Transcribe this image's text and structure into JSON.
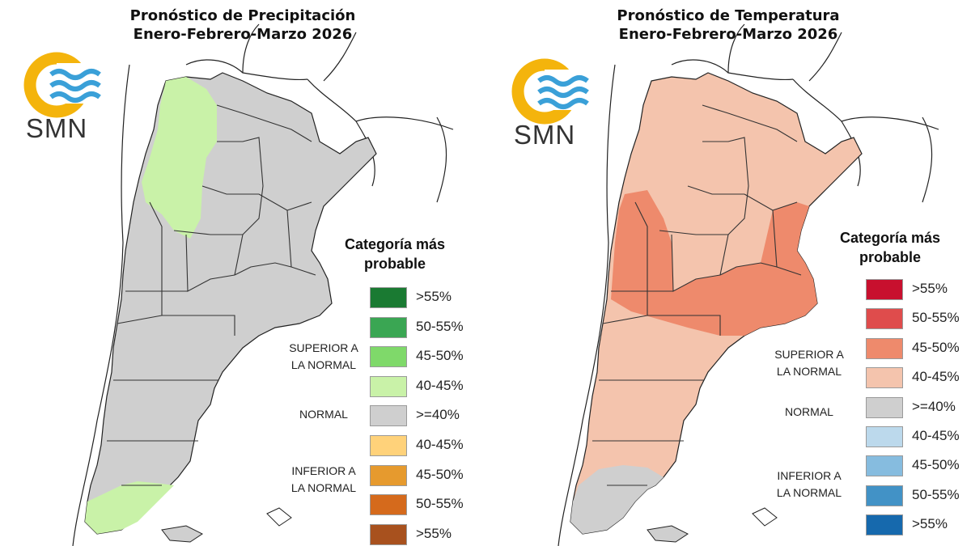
{
  "panels": [
    {
      "id": "precip",
      "title_line1": "Pronóstico de Precipitación",
      "title_line2": "Enero-Febrero-Marzo 2026",
      "logo_text": "SMN",
      "legend_title_line1": "Categoría más",
      "legend_title_line2": "probable",
      "categories": {
        "superior_line1": "SUPERIOR A",
        "superior_line2": "LA NORMAL",
        "normal": "NORMAL",
        "inferior_line1": "INFERIOR A",
        "inferior_line2": "LA NORMAL"
      },
      "legend": [
        {
          "label": ">55%",
          "color": "#1a7a32"
        },
        {
          "label": "50-55%",
          "color": "#3aa653"
        },
        {
          "label": "45-50%",
          "color": "#7fd96a"
        },
        {
          "label": "40-45%",
          "color": "#c9f2a8"
        },
        {
          "label": ">=40%",
          "color": "#cfcfcf"
        },
        {
          "label": "40-45%",
          "color": "#ffd27a"
        },
        {
          "label": "45-50%",
          "color": "#e69a2e"
        },
        {
          "label": "50-55%",
          "color": "#d56a1c"
        },
        {
          "label": ">55%",
          "color": "#a8511e"
        }
      ],
      "map_colors": {
        "base": "#cfcfcf",
        "highlight_north": "#c9f2a8",
        "highlight_south": "#c9f2a8"
      }
    },
    {
      "id": "temp",
      "title_line1": "Pronóstico de Temperatura",
      "title_line2": "Enero-Febrero-Marzo 2026",
      "logo_text": "SMN",
      "legend_title_line1": "Categoría más",
      "legend_title_line2": "probable",
      "categories": {
        "superior_line1": "SUPERIOR A",
        "superior_line2": "LA NORMAL",
        "normal": "NORMAL",
        "inferior_line1": "INFERIOR A",
        "inferior_line2": "LA NORMAL"
      },
      "legend": [
        {
          "label": ">55%",
          "color": "#c8102e"
        },
        {
          "label": "50-55%",
          "color": "#df4c4c"
        },
        {
          "label": "45-50%",
          "color": "#ee8a6c"
        },
        {
          "label": "40-45%",
          "color": "#f4c4ad"
        },
        {
          "label": ">=40%",
          "color": "#cfcfcf"
        },
        {
          "label": "40-45%",
          "color": "#bcd9ec"
        },
        {
          "label": "45-50%",
          "color": "#86bcdf"
        },
        {
          "label": "50-55%",
          "color": "#4292c6"
        },
        {
          "label": ">55%",
          "color": "#1669ad"
        }
      ],
      "map_colors": {
        "base": "#f4c4ad",
        "highlight_north": "#ee8a6c",
        "highlight_south": "#cfcfcf"
      }
    }
  ]
}
